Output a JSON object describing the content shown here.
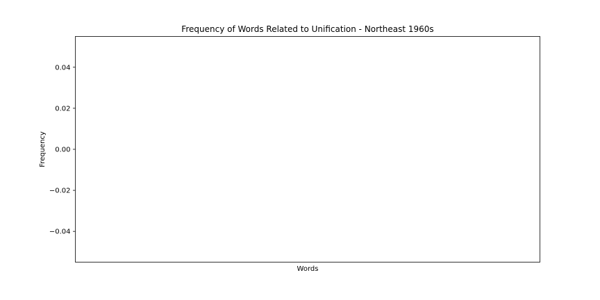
{
  "chart_data": {
    "type": "bar",
    "title": "Frequency of Words Related to Unification - Northeast 1960s",
    "xlabel": "Words",
    "ylabel": "Frequency",
    "categories": [],
    "values": [],
    "ylim": [
      -0.055,
      0.055
    ],
    "yticks": [
      -0.04,
      -0.02,
      0.0,
      0.02,
      0.04
    ],
    "ytick_labels": [
      "−0.04",
      "−0.02",
      "0.00",
      "0.02",
      "0.04"
    ],
    "xticks": [],
    "grid": false,
    "legend": "none"
  }
}
